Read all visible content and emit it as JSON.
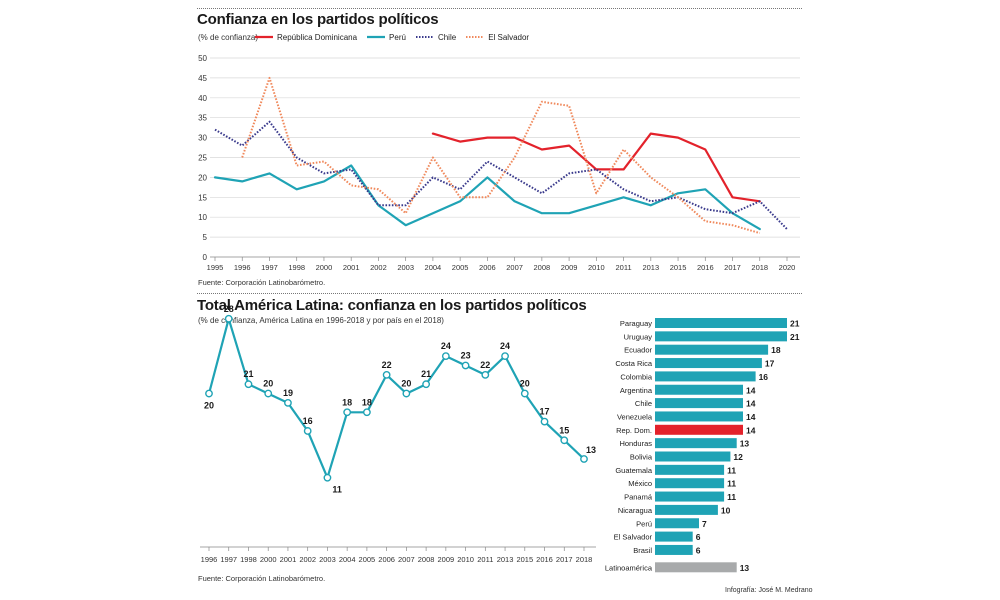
{
  "chart_data": [
    {
      "type": "line",
      "title": "Confianza en los partidos políticos",
      "subtitle": "(% de confianza)",
      "source": "Fuente: Corporación Latinobarómetro.",
      "x": [
        "1995",
        "1996",
        "1997",
        "1998",
        "2000",
        "2001",
        "2002",
        "2003",
        "2004",
        "2005",
        "2006",
        "2007",
        "2008",
        "2009",
        "2010",
        "2011",
        "2013",
        "2015",
        "2016",
        "2017",
        "2018",
        "2020"
      ],
      "ylim": [
        0,
        50
      ],
      "yticks": [
        "0",
        "5",
        "10",
        "15",
        "20",
        "25",
        "30",
        "35",
        "40",
        "45",
        "50"
      ],
      "grid": true,
      "legend_placement": "top",
      "series": [
        {
          "name": "República Dominicana",
          "color": "#e3222b",
          "style": "solid",
          "values": [
            null,
            null,
            null,
            null,
            null,
            null,
            null,
            null,
            31,
            29,
            30,
            30,
            27,
            28,
            22,
            22,
            31,
            30,
            27,
            15,
            14,
            null
          ]
        },
        {
          "name": "Perú",
          "color": "#1fa3b5",
          "style": "solid",
          "values": [
            20,
            19,
            21,
            17,
            19,
            23,
            13,
            8,
            11,
            14,
            20,
            14,
            11,
            11,
            13,
            15,
            13,
            16,
            17,
            11,
            7,
            null
          ]
        },
        {
          "name": "Chile",
          "color": "#3a3a8c",
          "style": "dotted",
          "values": [
            32,
            28,
            34,
            25,
            21,
            22,
            13,
            13,
            20,
            17,
            24,
            20,
            16,
            21,
            22,
            17,
            14,
            15,
            12,
            11,
            14,
            7
          ]
        },
        {
          "name": "El Salvador",
          "color": "#f08a5d",
          "style": "dotted",
          "values": [
            null,
            25,
            45,
            23,
            24,
            18,
            17,
            11,
            25,
            15,
            15,
            25,
            39,
            38,
            16,
            27,
            20,
            15,
            9,
            8,
            6,
            null
          ]
        }
      ]
    },
    {
      "type": "line",
      "title": "Total América Latina: confianza en los partidos políticos",
      "subtitle": "(% de confianza, América Latina en 1996-2018 y por país en el 2018)",
      "source": "Fuente: Corporación Latinobarómetro.",
      "color": "#1fa3b5",
      "x": [
        "1996",
        "1997",
        "1998",
        "2000",
        "2001",
        "2002",
        "2003",
        "2004",
        "2005",
        "2006",
        "2007",
        "2008",
        "2009",
        "2010",
        "2011",
        "2013",
        "2015",
        "2016",
        "2017",
        "2018"
      ],
      "values": [
        20,
        28,
        21,
        20,
        19,
        16,
        11,
        18,
        18,
        22,
        20,
        21,
        24,
        23,
        22,
        24,
        20,
        17,
        15,
        13
      ],
      "labels": [
        "20",
        "28",
        "21",
        "20",
        "19",
        "16",
        "11",
        "18",
        "18",
        "22",
        "20",
        "21",
        "24",
        "23",
        "22",
        "24",
        "20",
        "17",
        "15",
        "13"
      ]
    },
    {
      "type": "bar",
      "orientation": "horizontal",
      "categories": [
        "Paraguay",
        "Uruguay",
        "Ecuador",
        "Costa Rica",
        "Colombia",
        "Argentina",
        "Chile",
        "Venezuela",
        "Rep. Dom.",
        "Honduras",
        "Bolivia",
        "Guatemala",
        "México",
        "Panamá",
        "Nicaragua",
        "Perú",
        "El Salvador",
        "Brasil",
        "Latinoamérica"
      ],
      "values": [
        21,
        21,
        18,
        17,
        16,
        14,
        14,
        14,
        14,
        13,
        12,
        11,
        11,
        11,
        10,
        7,
        6,
        6,
        13
      ],
      "labels": [
        "21",
        "21",
        "18",
        "17",
        "16",
        "14",
        "14",
        "14",
        "14",
        "13",
        "12",
        "11",
        "11",
        "11",
        "10",
        "7",
        "6",
        "6",
        "13"
      ],
      "colors": {
        "default": "#1fa3b5",
        "Rep. Dom.": "#e3222b",
        "Latinoamérica": "#a8aaab"
      },
      "xlim": [
        0,
        21
      ]
    }
  ],
  "credit": "Infografía: José M. Medrano"
}
